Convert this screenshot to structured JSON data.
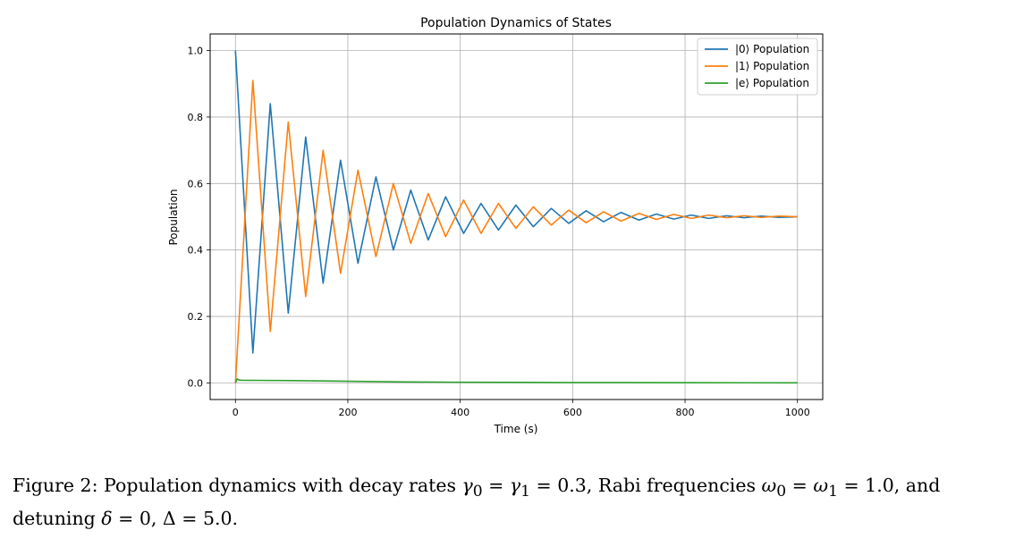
{
  "chart_data": {
    "type": "line",
    "title": "Population Dynamics of States",
    "xlabel": "Time (s)",
    "ylabel": "Population",
    "xlim": [
      -45,
      1045
    ],
    "ylim": [
      -0.05,
      1.05
    ],
    "xticks": [
      0,
      200,
      400,
      600,
      800,
      1000
    ],
    "xtick_labels": [
      "0",
      "200",
      "400",
      "600",
      "800",
      "1000"
    ],
    "yticks": [
      0.0,
      0.2,
      0.4,
      0.6,
      0.8,
      1.0
    ],
    "ytick_labels": [
      "0.0",
      "0.2",
      "0.4",
      "0.6",
      "0.8",
      "1.0"
    ],
    "grid": true,
    "legend_position": "top-right",
    "series": [
      {
        "name": "|0⟩ Population",
        "color": "#1f77b4",
        "x": [
          0,
          31,
          62,
          94,
          125,
          156,
          187,
          218,
          250,
          281,
          312,
          343,
          374,
          406,
          437,
          468,
          499,
          530,
          562,
          593,
          624,
          655,
          686,
          718,
          749,
          780,
          811,
          842,
          874,
          905,
          936,
          967,
          1000
        ],
        "y": [
          1.0,
          0.09,
          0.84,
          0.21,
          0.74,
          0.3,
          0.67,
          0.36,
          0.62,
          0.4,
          0.58,
          0.43,
          0.56,
          0.45,
          0.54,
          0.46,
          0.535,
          0.47,
          0.525,
          0.48,
          0.518,
          0.485,
          0.513,
          0.49,
          0.508,
          0.493,
          0.505,
          0.495,
          0.503,
          0.497,
          0.502,
          0.498,
          0.5
        ]
      },
      {
        "name": "|1⟩ Population",
        "color": "#ff7f0e",
        "x": [
          0,
          31,
          62,
          94,
          125,
          156,
          187,
          218,
          250,
          281,
          312,
          343,
          374,
          406,
          437,
          468,
          499,
          530,
          562,
          593,
          624,
          655,
          686,
          718,
          749,
          780,
          811,
          842,
          874,
          905,
          936,
          967,
          1000
        ],
        "y": [
          0.0,
          0.91,
          0.155,
          0.785,
          0.26,
          0.7,
          0.33,
          0.64,
          0.38,
          0.6,
          0.42,
          0.57,
          0.44,
          0.55,
          0.45,
          0.54,
          0.465,
          0.53,
          0.475,
          0.52,
          0.482,
          0.515,
          0.487,
          0.51,
          0.492,
          0.507,
          0.495,
          0.505,
          0.497,
          0.503,
          0.498,
          0.502,
          0.5
        ]
      },
      {
        "name": "|e⟩ Population",
        "color": "#2ca02c",
        "x": [
          0,
          3,
          6,
          10,
          50,
          100,
          200,
          300,
          400,
          500,
          600,
          700,
          800,
          900,
          1000
        ],
        "y": [
          0.0,
          0.012,
          0.009,
          0.008,
          0.0075,
          0.007,
          0.005,
          0.003,
          0.002,
          0.0015,
          0.001,
          0.0008,
          0.0006,
          0.0004,
          0.0003
        ]
      }
    ]
  },
  "caption": {
    "label": "Figure 2:",
    "text_1": " Population dynamics with decay rates ",
    "gamma0": "γ",
    "sub0": "0",
    "eq1": " = ",
    "gamma1": "γ",
    "sub1": "1",
    "val1": " = 0.3, Rabi frequencies ",
    "omega0": "ω",
    "sub2": "0",
    "eq2": " = ",
    "omega1": "ω",
    "sub3": "1",
    "val2": " = 1.0, and",
    "text_2": "detuning ",
    "delta_small": "δ",
    "val3": " = 0, Δ = 5.0."
  }
}
